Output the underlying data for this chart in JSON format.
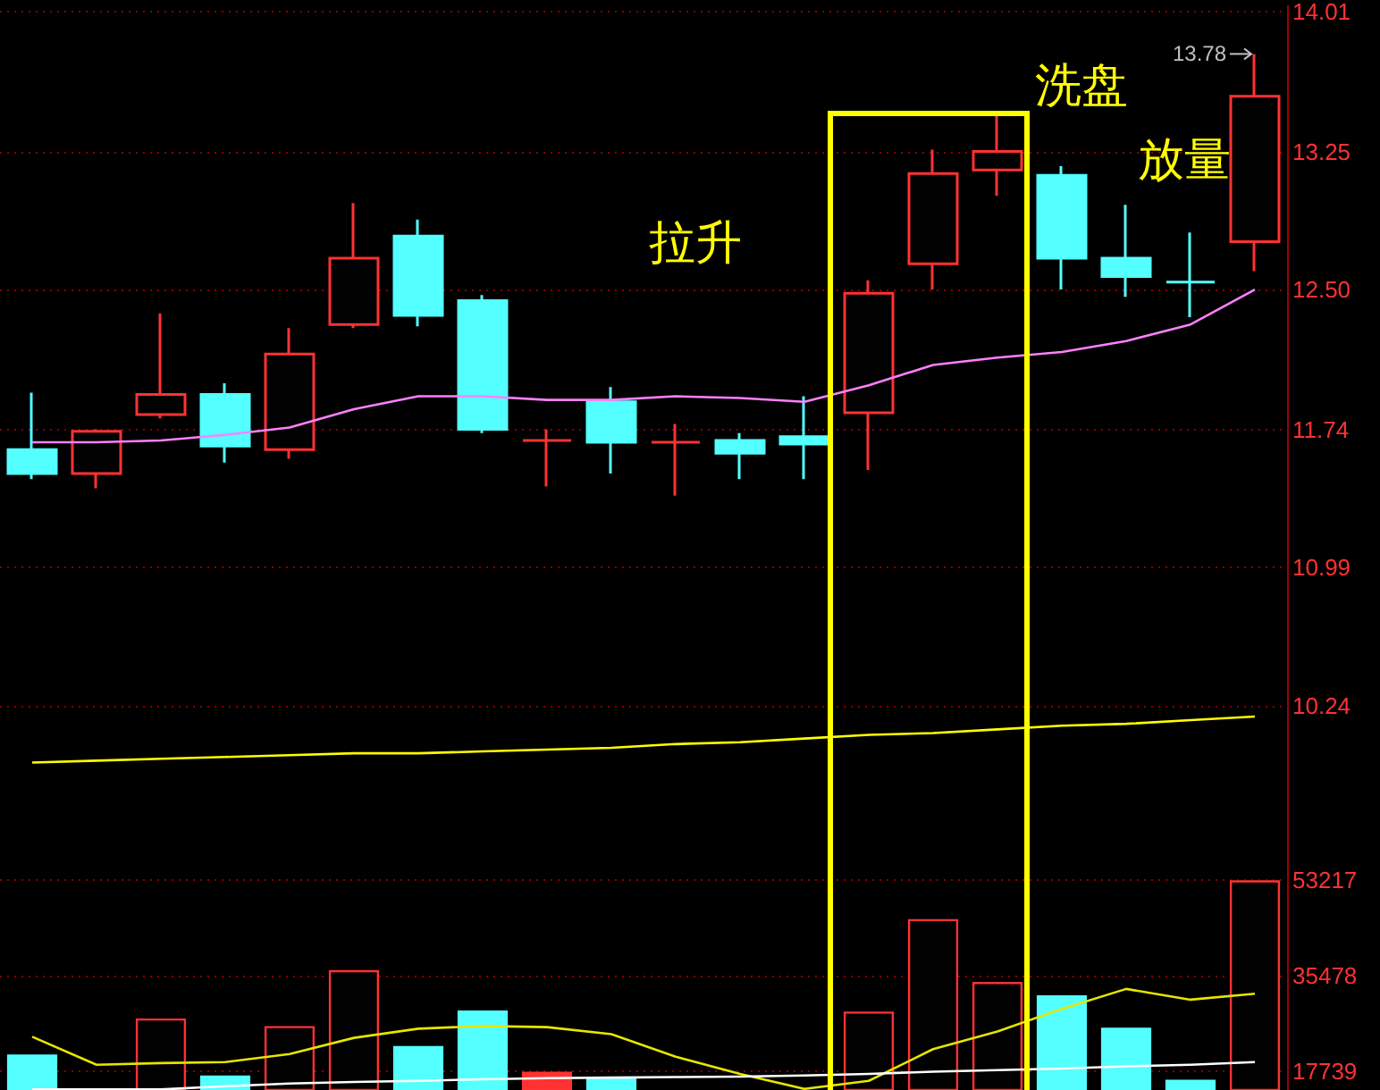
{
  "chart_data": [
    {
      "type": "candlestick",
      "categories": [
        null,
        null,
        null,
        null,
        null,
        null,
        null,
        null,
        null,
        null,
        null,
        null,
        null,
        null,
        null,
        null,
        null,
        null,
        null,
        null
      ],
      "series": [
        {
          "type": "candlestick",
          "ohlc": [
            [
              11.63,
              11.94,
              11.47,
              11.5
            ],
            [
              11.5,
              11.74,
              11.42,
              11.73
            ],
            [
              11.82,
              12.37,
              11.8,
              11.93
            ],
            [
              11.93,
              11.99,
              11.56,
              11.65
            ],
            [
              11.63,
              12.29,
              11.58,
              12.15
            ],
            [
              12.31,
              12.97,
              12.29,
              12.67
            ],
            [
              12.79,
              12.88,
              12.3,
              12.36
            ],
            [
              12.44,
              12.47,
              11.72,
              11.74
            ],
            [
              11.68,
              11.74,
              11.43,
              11.68
            ],
            [
              11.89,
              11.97,
              11.5,
              11.67
            ],
            [
              11.67,
              11.77,
              11.38,
              11.67
            ],
            [
              11.68,
              11.72,
              11.47,
              11.61
            ],
            [
              11.7,
              11.92,
              11.47,
              11.66
            ],
            [
              11.83,
              12.55,
              11.52,
              12.48
            ],
            [
              12.64,
              13.26,
              12.5,
              13.13
            ],
            [
              13.15,
              13.45,
              13.01,
              13.25
            ],
            [
              13.12,
              13.17,
              12.5,
              12.67
            ],
            [
              12.67,
              12.96,
              12.46,
              12.57
            ],
            [
              12.54,
              12.81,
              12.35,
              12.54
            ],
            [
              12.76,
              13.78,
              12.6,
              13.55
            ]
          ],
          "colors": [
            "#54ffff",
            "#ff3232",
            "#ff3232",
            "#54ffff",
            "#ff3232",
            "#ff3232",
            "#54ffff",
            "#54ffff",
            "#ff3232",
            "#54ffff",
            "#ff3232",
            "#54ffff",
            "#54ffff",
            "#ff3232",
            "#ff3232",
            "#ff3232",
            "#54ffff",
            "#54ffff",
            "#54ffff",
            "#ff3232"
          ]
        },
        {
          "type": "line",
          "color": "#ff80ff",
          "values": [
            11.67,
            11.67,
            11.68,
            11.71,
            11.75,
            11.85,
            11.92,
            11.92,
            11.9,
            11.9,
            11.92,
            11.91,
            11.89,
            11.98,
            12.09,
            12.13,
            12.16,
            12.22,
            12.31,
            12.5
          ]
        },
        {
          "type": "line",
          "color": "#ffff00",
          "values": [
            9.93,
            9.94,
            9.95,
            9.96,
            9.97,
            9.98,
            9.98,
            9.99,
            10.0,
            10.01,
            10.03,
            10.04,
            10.06,
            10.08,
            10.09,
            10.11,
            10.13,
            10.14,
            10.16,
            10.18
          ]
        }
      ],
      "ylim": [
        9.5,
        14.04
      ],
      "yticks": [
        14.01,
        13.25,
        {
          "value": 12.5,
          "label": "12.50"
        },
        11.74,
        10.99,
        10.24
      ],
      "grid": "y",
      "tick_labels": "y",
      "marker": "none",
      "annotations": [
        "拉升",
        "洗盘",
        "放量",
        "13.78"
      ]
    },
    {
      "type": "bar",
      "categories": [
        null,
        null,
        null,
        null,
        null,
        null,
        null,
        null,
        null,
        null,
        null,
        null,
        null,
        null,
        null,
        null,
        null,
        null,
        null,
        null
      ],
      "series": [
        {
          "type": "bar",
          "values": [
            20800,
            null,
            27500,
            16900,
            26100,
            36500,
            22400,
            29000,
            17600,
            16400,
            null,
            null,
            null,
            28800,
            46000,
            34300,
            31800,
            25800,
            16100,
            53200
          ],
          "colors": [
            "#54ffff",
            "#ff3232",
            "#ff3232",
            "#54ffff",
            "#ff3232",
            "#ff3232",
            "#54ffff",
            "#54ffff",
            "#ff3232",
            "#54ffff",
            "#ff3232",
            "#54ffff",
            "#54ffff",
            "#ff3232",
            "#ff3232",
            "#ff3232",
            "#54ffff",
            "#54ffff",
            "#54ffff",
            "#ff3232"
          ]
        },
        {
          "type": "line",
          "color": "#e6e600",
          "values": [
            24100,
            18900,
            19200,
            19400,
            20900,
            23900,
            25600,
            26100,
            25900,
            24600,
            20400,
            17200,
            14400,
            15900,
            21800,
            25100,
            29300,
            33000,
            31000,
            32100
          ]
        },
        {
          "type": "line",
          "color": "#ffffff",
          "values": [
            14300,
            14300,
            14300,
            14900,
            15400,
            15700,
            15900,
            16200,
            16400,
            16500,
            16600,
            16700,
            16900,
            17200,
            17600,
            17900,
            18200,
            18600,
            18900,
            19400
          ]
        }
      ],
      "ylim": [
        14200,
        60400
      ],
      "yticks": [
        17739,
        35478,
        53217
      ],
      "grid": "y",
      "tick_labels": "y",
      "marker": "none"
    }
  ]
}
